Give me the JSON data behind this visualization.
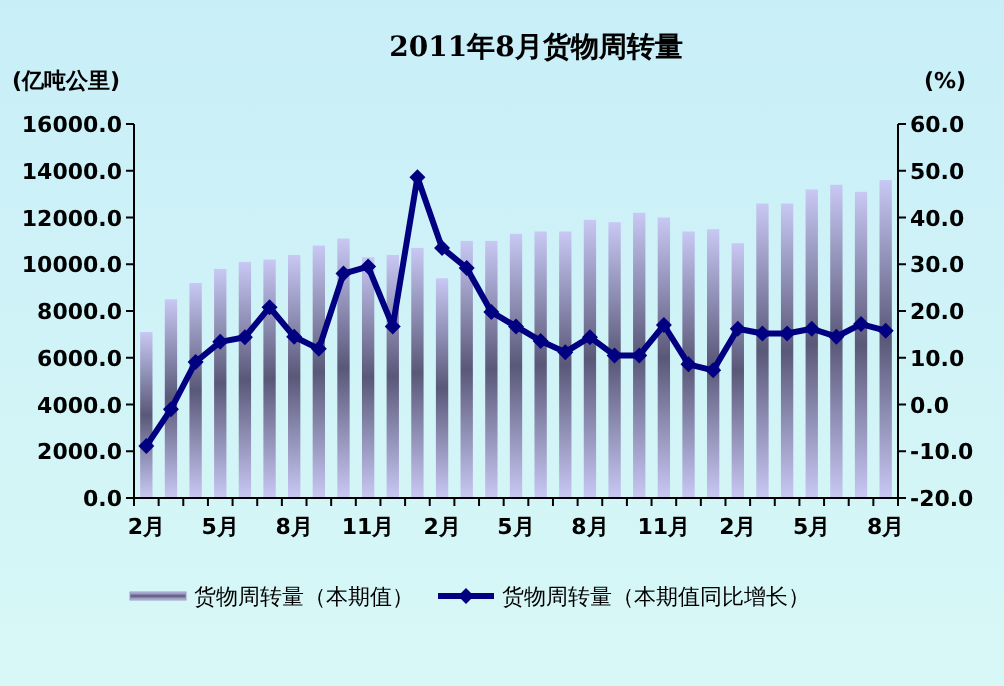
{
  "chart_data": {
    "type": "bar",
    "title": "2011年8月货物周转量",
    "ylabel": "(亿吨公里)",
    "y2label": "(%)",
    "categories": [
      "2月",
      null,
      null,
      "5月",
      null,
      null,
      "8月",
      null,
      null,
      "11月",
      null,
      null,
      "2月",
      null,
      null,
      "5月",
      null,
      null,
      "8月",
      null,
      null,
      "11月",
      null,
      null,
      "2月",
      null,
      null,
      "5月",
      null,
      null,
      "8月"
    ],
    "series": [
      {
        "name": "货物周转量（本期值）",
        "color": "#9c98c8",
        "values": [
          7100,
          8500,
          9200,
          9800,
          10100,
          10200,
          10400,
          10800,
          11100,
          10300,
          10400,
          10700,
          9400,
          11000,
          11000,
          11300,
          11400,
          11400,
          11900,
          11800,
          12200,
          12000,
          11400,
          11500,
          10900,
          12600,
          12600,
          13200,
          13400,
          13100,
          13600
        ]
      },
      {
        "name": "货物周转量（本期值同比增长）",
        "type": "line",
        "axis": "y2",
        "color": "#000080",
        "marker": "diamond",
        "values": [
          -8.9,
          -1.0,
          9.1,
          13.4,
          14.4,
          20.8,
          14.5,
          11.9,
          28.0,
          29.5,
          16.7,
          48.6,
          33.5,
          29.2,
          19.8,
          16.7,
          13.6,
          11.2,
          14.4,
          10.5,
          10.5,
          17.0,
          8.6,
          7.3,
          16.2,
          15.2,
          15.2,
          16.2,
          14.5,
          17.2,
          15.8
        ]
      }
    ],
    "ylim": [
      0,
      16000
    ],
    "yticks": [
      {
        "value": 0,
        "label": "0.0"
      },
      {
        "value": 2000,
        "label": "2000.0"
      },
      {
        "value": 4000,
        "label": "4000.0"
      },
      {
        "value": 6000,
        "label": "6000.0"
      },
      {
        "value": 8000,
        "label": "8000.0"
      },
      {
        "value": 10000,
        "label": "10000.0"
      },
      {
        "value": 12000,
        "label": "12000.0"
      },
      {
        "value": 14000,
        "label": "14000.0"
      },
      {
        "value": 16000,
        "label": "16000.0"
      }
    ],
    "y2lim": [
      -20,
      60
    ],
    "y2ticks": [
      {
        "value": -20,
        "label": "-20.0"
      },
      {
        "value": -10,
        "label": "-10.0"
      },
      {
        "value": 0,
        "label": "0.0"
      },
      {
        "value": 10,
        "label": "10.0"
      },
      {
        "value": 20,
        "label": "20.0"
      },
      {
        "value": 30,
        "label": "30.0"
      },
      {
        "value": 40,
        "label": "40.0"
      },
      {
        "value": 50,
        "label": "50.0"
      },
      {
        "value": 60,
        "label": "60.0"
      }
    ],
    "legend": "bottom",
    "grid": false
  }
}
